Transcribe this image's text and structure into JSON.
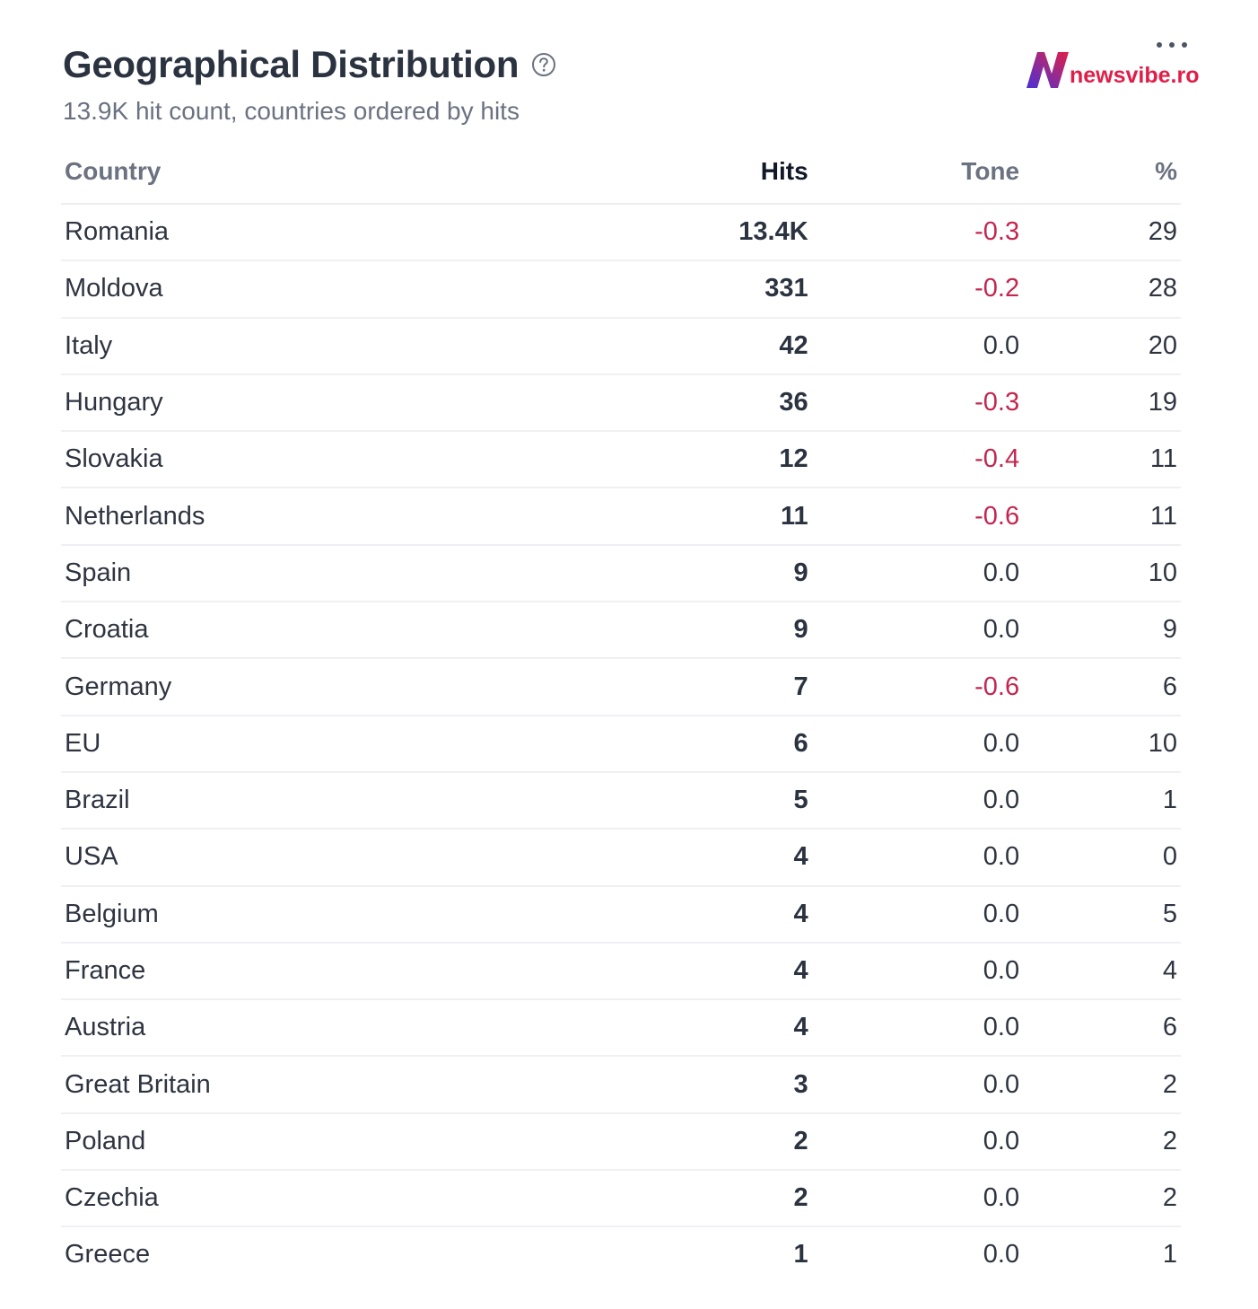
{
  "header": {
    "title": "Geographical Distribution",
    "subtitle": "13.9K hit count, countries ordered by hits",
    "help_icon": "question-circle-icon",
    "more_icon": "more-horizontal-icon"
  },
  "logo": {
    "mark": "N",
    "text": "newsvibe.ro",
    "colors": {
      "mark_left": "#4b2fd6",
      "mark_right": "#e11d48",
      "text": "#e11d48"
    }
  },
  "table": {
    "columns": {
      "country": "Country",
      "hits": "Hits",
      "tone": "Tone",
      "pct": "%"
    },
    "rows": [
      {
        "country": "Romania",
        "hits": "13.4K",
        "tone": "-0.3",
        "pct": "29"
      },
      {
        "country": "Moldova",
        "hits": "331",
        "tone": "-0.2",
        "pct": "28"
      },
      {
        "country": "Italy",
        "hits": "42",
        "tone": "0.0",
        "pct": "20"
      },
      {
        "country": "Hungary",
        "hits": "36",
        "tone": "-0.3",
        "pct": "19"
      },
      {
        "country": "Slovakia",
        "hits": "12",
        "tone": "-0.4",
        "pct": "11"
      },
      {
        "country": "Netherlands",
        "hits": "11",
        "tone": "-0.6",
        "pct": "11"
      },
      {
        "country": "Spain",
        "hits": "9",
        "tone": "0.0",
        "pct": "10"
      },
      {
        "country": "Croatia",
        "hits": "9",
        "tone": "0.0",
        "pct": "9"
      },
      {
        "country": "Germany",
        "hits": "7",
        "tone": "-0.6",
        "pct": "6"
      },
      {
        "country": "EU",
        "hits": "6",
        "tone": "0.0",
        "pct": "10"
      },
      {
        "country": "Brazil",
        "hits": "5",
        "tone": "0.0",
        "pct": "1"
      },
      {
        "country": "USA",
        "hits": "4",
        "tone": "0.0",
        "pct": "0"
      },
      {
        "country": "Belgium",
        "hits": "4",
        "tone": "0.0",
        "pct": "5"
      },
      {
        "country": "France",
        "hits": "4",
        "tone": "0.0",
        "pct": "4"
      },
      {
        "country": "Austria",
        "hits": "4",
        "tone": "0.0",
        "pct": "6"
      },
      {
        "country": "Great Britain",
        "hits": "3",
        "tone": "0.0",
        "pct": "2"
      },
      {
        "country": "Poland",
        "hits": "2",
        "tone": "0.0",
        "pct": "2"
      },
      {
        "country": "Czechia",
        "hits": "2",
        "tone": "0.0",
        "pct": "2"
      },
      {
        "country": "Greece",
        "hits": "1",
        "tone": "0.0",
        "pct": "1"
      }
    ]
  },
  "colors": {
    "negative_tone": "#c4264f",
    "title": "#2b3340",
    "muted": "#6b7280"
  }
}
